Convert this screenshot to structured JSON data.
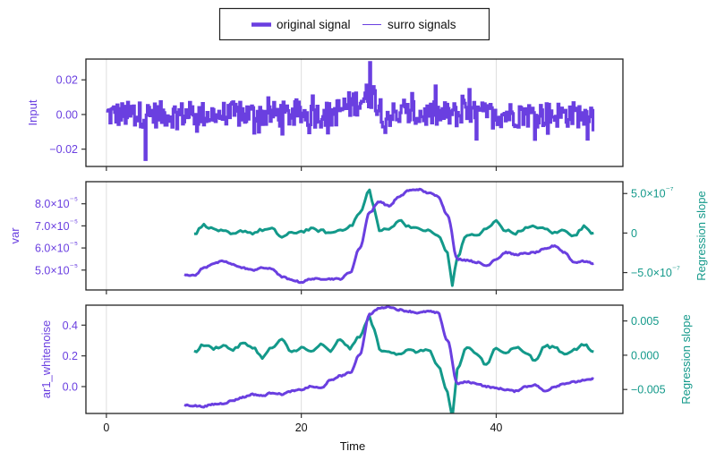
{
  "colors": {
    "primary": "#6a3fe0",
    "secondary": "#13998a",
    "frame": "#222222",
    "grid": "#dddddd",
    "text": "#111111"
  },
  "legend": {
    "items": [
      {
        "label": "original signal",
        "style": "thick"
      },
      {
        "label": "surro signals",
        "style": "thin"
      }
    ]
  },
  "xaxis": {
    "label": "Time",
    "ticks": [
      0,
      20,
      40
    ],
    "tick_labels": [
      "0",
      "20",
      "40"
    ],
    "range": [
      -2.1,
      53
    ]
  },
  "chart_data": [
    {
      "type": "line",
      "title": "",
      "panel": "top",
      "xlabel": "",
      "ylabel": "Input",
      "ylim": [
        -0.03,
        0.032
      ],
      "yticks": [
        0.02,
        0.0,
        -0.02
      ],
      "ytick_labels": [
        "0.02",
        "0.00",
        "−0.02"
      ],
      "grid": "vertical",
      "series": [
        {
          "name": "original signal",
          "x_range": [
            0,
            50
          ],
          "description": "noisy signal roughly within ±0.015, bursting up to ~0.03 near t≈27, min ≈ -0.026 near t≈4"
        }
      ]
    },
    {
      "type": "line",
      "panel": "middle",
      "xlabel": "",
      "ylabel": "var",
      "ylim": [
        4.1e-05,
        9e-05
      ],
      "yticks": [
        8e-05,
        7e-05,
        6e-05,
        5e-05
      ],
      "ytick_labels": [
        "8.0×10⁻⁵",
        "7.0×10⁻⁵",
        "6.0×10⁻⁵",
        "5.0×10⁻⁵"
      ],
      "y2label": "Regression slope",
      "y2lim": [
        -7.2e-07,
        6.5e-07
      ],
      "y2ticks": [
        5e-07,
        0,
        -5e-07
      ],
      "y2tick_labels": [
        "5.0×10⁻⁷",
        "0",
        "−5.0×10⁻⁷"
      ],
      "series": [
        {
          "name": "var",
          "axis": "left",
          "x": [
            8,
            9,
            10,
            11,
            12,
            13,
            14,
            15,
            16,
            17,
            18,
            19,
            20,
            21,
            22,
            23,
            24,
            25,
            26,
            27,
            28,
            29,
            30,
            31,
            32,
            33,
            34,
            35,
            36,
            37,
            38,
            39,
            40,
            41,
            42,
            43,
            44,
            45,
            46,
            47,
            48,
            49,
            50
          ],
          "y": [
            4.8e-05,
            4.75e-05,
            5.1e-05,
            5.3e-05,
            5.4e-05,
            5.25e-05,
            5.1e-05,
            5e-05,
            5.1e-05,
            5.05e-05,
            4.7e-05,
            4.55e-05,
            4.45e-05,
            4.6e-05,
            4.6e-05,
            4.6e-05,
            4.6e-05,
            4.9e-05,
            6e-05,
            7.6e-05,
            8.1e-05,
            7.9e-05,
            8.3e-05,
            8.6e-05,
            8.65e-05,
            8.5e-05,
            8.35e-05,
            7.5e-05,
            5.5e-05,
            5.45e-05,
            5.35e-05,
            5.2e-05,
            5.5e-05,
            5.8e-05,
            5.7e-05,
            5.75e-05,
            5.8e-05,
            5.95e-05,
            6.1e-05,
            5.8e-05,
            5.35e-05,
            5.4e-05,
            5.3e-05
          ]
        },
        {
          "name": "Regression slope",
          "axis": "right",
          "x": [
            9,
            10,
            11,
            12,
            13,
            14,
            15,
            16,
            17,
            18,
            19,
            20,
            21,
            22,
            23,
            24,
            25,
            26,
            27,
            27.5,
            28,
            28.5,
            29,
            30,
            31,
            32,
            33,
            34,
            35,
            35.5,
            36,
            37,
            38,
            39,
            40,
            41,
            42,
            43,
            44,
            45,
            46,
            47,
            48,
            49,
            50
          ],
          "y": [
            -1e-08,
            1e-07,
            5e-08,
            2e-08,
            -2e-08,
            3e-08,
            0.0,
            4e-08,
            5e-08,
            -5e-08,
            0.0,
            2e-08,
            5e-08,
            3e-08,
            0.0,
            4e-08,
            8e-08,
            2.5e-07,
            5.4e-07,
            3e-07,
            3e-08,
            4e-08,
            5e-08,
            1.6e-07,
            9e-08,
            5e-08,
            3e-08,
            -3e-08,
            -2.5e-07,
            -6.5e-07,
            -3e-07,
            -2e-08,
            -3e-08,
            5e-08,
            1.5e-07,
            3e-08,
            0.0,
            6e-08,
            8e-08,
            5e-08,
            0.0,
            4e-08,
            -4e-08,
            8e-08,
            0.0
          ]
        }
      ]
    },
    {
      "type": "line",
      "panel": "bottom",
      "xlabel": "Time",
      "ylabel": "ar1_whitenoise",
      "ylim": [
        -0.175,
        0.53
      ],
      "yticks": [
        0.4,
        0.2,
        0.0
      ],
      "ytick_labels": [
        "0.4",
        "0.2",
        "0.0"
      ],
      "y2label": "Regression slope",
      "y2lim": [
        -0.0085,
        0.0073
      ],
      "y2ticks": [
        0.005,
        0.0,
        -0.005
      ],
      "y2tick_labels": [
        "0.005",
        "0.000",
        "−0.005"
      ],
      "series": [
        {
          "name": "ar1_whitenoise",
          "axis": "left",
          "x": [
            8,
            9,
            10,
            11,
            12,
            13,
            14,
            15,
            16,
            17,
            18,
            19,
            20,
            21,
            22,
            23,
            24,
            25,
            26,
            27,
            28,
            29,
            30,
            31,
            32,
            33,
            34,
            35,
            36,
            37,
            38,
            39,
            40,
            41,
            42,
            43,
            44,
            45,
            46,
            47,
            48,
            49,
            50
          ],
          "y": [
            -0.12,
            -0.125,
            -0.13,
            -0.115,
            -0.11,
            -0.09,
            -0.07,
            -0.05,
            -0.06,
            -0.04,
            -0.05,
            -0.03,
            -0.02,
            0.0,
            -0.01,
            0.04,
            0.07,
            0.09,
            0.21,
            0.47,
            0.51,
            0.52,
            0.5,
            0.49,
            0.48,
            0.49,
            0.48,
            0.3,
            0.02,
            0.03,
            0.02,
            0.0,
            -0.01,
            -0.02,
            -0.03,
            0.0,
            0.01,
            -0.03,
            0.0,
            0.02,
            0.03,
            0.04,
            0.05
          ]
        },
        {
          "name": "Regression slope",
          "axis": "right",
          "x": [
            9,
            10,
            11,
            12,
            13,
            14,
            15,
            16,
            17,
            18,
            19,
            20,
            21,
            22,
            23,
            24,
            25,
            26,
            27,
            27.5,
            28,
            28.5,
            29,
            30,
            31,
            32,
            33,
            34,
            35,
            35.5,
            36,
            37,
            38,
            39,
            40,
            41,
            42,
            43,
            44,
            45,
            46,
            47,
            48,
            49,
            50
          ],
          "y": [
            0.0005,
            0.0015,
            0.001,
            0.0014,
            0.0008,
            0.0017,
            0.0012,
            -0.0003,
            0.0011,
            0.0022,
            0.0005,
            0.0011,
            0.0005,
            0.0015,
            0.0006,
            0.0023,
            0.001,
            0.0028,
            0.0055,
            0.0038,
            0.0008,
            0.0005,
            0.0006,
            0.0002,
            0.0007,
            0.0005,
            0.0009,
            -0.0015,
            -0.0055,
            -0.0092,
            -0.002,
            0.0012,
            0.0002,
            -0.0015,
            0.0011,
            0.0004,
            0.0012,
            0.0004,
            -0.0008,
            0.0013,
            0.0012,
            0.0002,
            0.0008,
            0.0015,
            0.0005
          ]
        }
      ]
    }
  ]
}
